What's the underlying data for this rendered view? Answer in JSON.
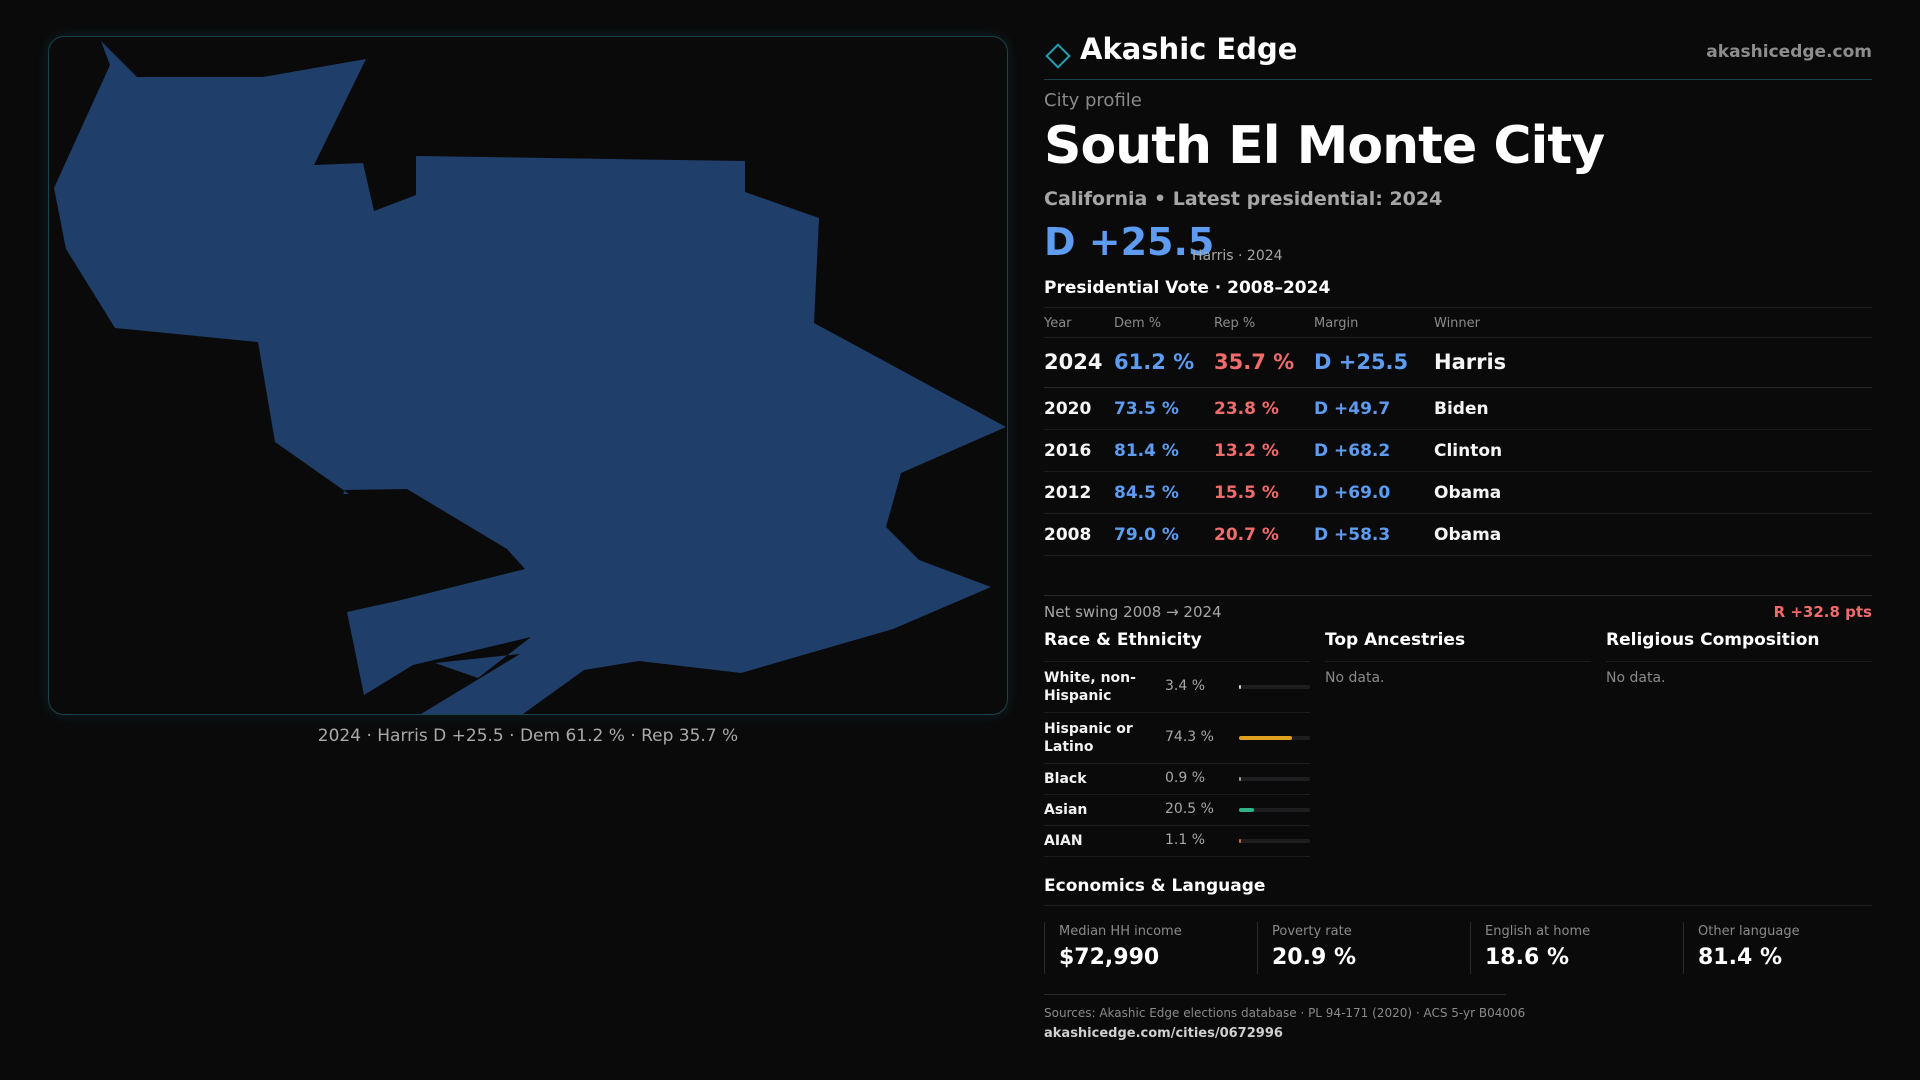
{
  "brand": {
    "name": "Akashic Edge",
    "url": "akashicedge.com"
  },
  "profile": {
    "kicker": "City profile",
    "title": "South El Monte City",
    "subtitle": "California • Latest presidential: 2024",
    "margin": "D +25.5",
    "margin_note": "Harris · 2024"
  },
  "map": {
    "caption": "2024 · Harris D +25.5 · Dem 61.2 % · Rep 35.7 %",
    "fill_color": "#1f3e69"
  },
  "vote": {
    "title": "Presidential Vote · 2008–2024",
    "headers": {
      "year": "Year",
      "dem": "Dem %",
      "rep": "Rep %",
      "margin": "Margin",
      "winner": "Winner"
    },
    "rows": [
      {
        "year": "2024",
        "dem": "61.2 %",
        "rep": "35.7 %",
        "margin": "D +25.5",
        "winner": "Harris"
      },
      {
        "year": "2020",
        "dem": "73.5 %",
        "rep": "23.8 %",
        "margin": "D +49.7",
        "winner": "Biden"
      },
      {
        "year": "2016",
        "dem": "81.4 %",
        "rep": "13.2 %",
        "margin": "D +68.2",
        "winner": "Clinton"
      },
      {
        "year": "2012",
        "dem": "84.5 %",
        "rep": "15.5 %",
        "margin": "D +69.0",
        "winner": "Obama"
      },
      {
        "year": "2008",
        "dem": "79.0 %",
        "rep": "20.7 %",
        "margin": "D +58.3",
        "winner": "Obama"
      }
    ],
    "swing_label": "Net swing 2008 → 2024",
    "swing_value": "R +32.8 pts"
  },
  "race": {
    "title": "Race & Ethnicity",
    "rows": [
      {
        "label": "White, non-Hispanic",
        "pct": "3.4 %",
        "value": 3.4,
        "color": "#cfcfcf"
      },
      {
        "label": "Hispanic or Latino",
        "pct": "74.3 %",
        "value": 74.3,
        "color": "#e0a020"
      },
      {
        "label": "Black",
        "pct": "0.9 %",
        "value": 0.9,
        "color": "#9a9aa0"
      },
      {
        "label": "Asian",
        "pct": "20.5 %",
        "value": 20.5,
        "color": "#2fb48a"
      },
      {
        "label": "AIAN",
        "pct": "1.1 %",
        "value": 1.1,
        "color": "#d26a3a"
      }
    ]
  },
  "ancestries": {
    "title": "Top Ancestries",
    "empty": "No data."
  },
  "religion": {
    "title": "Religious Composition",
    "empty": "No data."
  },
  "economics": {
    "title": "Economics & Language",
    "cells": [
      {
        "label": "Median HH income",
        "value": "$72,990"
      },
      {
        "label": "Poverty rate",
        "value": "20.9 %"
      },
      {
        "label": "English at home",
        "value": "18.6 %"
      },
      {
        "label": "Other language",
        "value": "81.4 %"
      }
    ]
  },
  "footer": {
    "sources": "Sources: Akashic Edge elections database · PL 94-171 (2020) · ACS 5-yr B04006",
    "url": "akashicedge.com/cities/0672996"
  }
}
